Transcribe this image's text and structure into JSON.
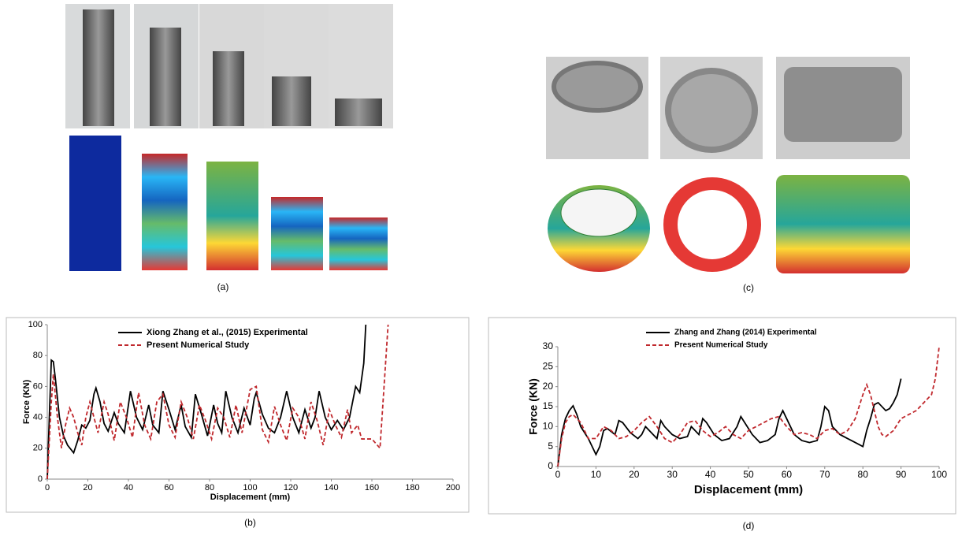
{
  "panels": {
    "a": "(a)",
    "c": "(c)"
  },
  "chart_data": [
    {
      "type": "line",
      "caption": "(b)",
      "xlabel": "Displacement (mm)",
      "ylabel": "Force (KN)",
      "xlim": [
        0,
        200
      ],
      "xticks": [
        0,
        20,
        40,
        60,
        80,
        100,
        120,
        140,
        160,
        180,
        200
      ],
      "ylim": [
        0,
        100
      ],
      "yticks": [
        0,
        20,
        40,
        60,
        80,
        100
      ],
      "grid": false,
      "legend": "top",
      "series": [
        {
          "name": "Xiong Zhang et al., (2015) Experimental",
          "color": "#000000",
          "dash": false,
          "x": [
            0,
            1,
            2,
            3,
            4,
            6,
            8,
            10,
            13,
            15,
            17,
            19,
            21,
            23,
            24,
            26,
            28,
            30,
            33,
            35,
            38,
            41,
            44,
            47,
            50,
            52,
            55,
            57,
            60,
            63,
            66,
            68,
            71,
            73,
            76,
            79,
            82,
            84,
            86,
            88,
            91,
            94,
            97,
            100,
            102,
            103,
            106,
            109,
            112,
            115,
            118,
            121,
            124,
            127,
            130,
            132,
            134,
            137,
            140,
            143,
            146,
            149,
            152,
            154,
            156,
            157
          ],
          "values": [
            0,
            40,
            77,
            76,
            65,
            40,
            28,
            22,
            17,
            25,
            35,
            33,
            38,
            55,
            59,
            50,
            36,
            31,
            43,
            36,
            30,
            57,
            40,
            32,
            48,
            35,
            30,
            57,
            45,
            32,
            48,
            34,
            27,
            55,
            42,
            28,
            48,
            36,
            30,
            57,
            40,
            30,
            46,
            35,
            52,
            56,
            42,
            33,
            30,
            40,
            57,
            40,
            30,
            45,
            33,
            40,
            57,
            40,
            32,
            38,
            32,
            40,
            60,
            56,
            75,
            100
          ]
        },
        {
          "name": "Present Numerical Study",
          "color": "#c0282d",
          "dash": true,
          "x": [
            0,
            2,
            3,
            5,
            7,
            9,
            11,
            13,
            15,
            17,
            19,
            21,
            23,
            25,
            28,
            30,
            33,
            36,
            39,
            42,
            45,
            48,
            51,
            54,
            57,
            60,
            63,
            66,
            69,
            72,
            75,
            78,
            81,
            84,
            87,
            90,
            93,
            96,
            100,
            103,
            106,
            109,
            112,
            115,
            118,
            121,
            124,
            127,
            130,
            133,
            136,
            139,
            142,
            145,
            148,
            150,
            153,
            155,
            160,
            164,
            166,
            168
          ],
          "values": [
            0,
            50,
            68,
            40,
            20,
            35,
            46,
            40,
            30,
            22,
            40,
            50,
            40,
            30,
            50,
            42,
            25,
            50,
            40,
            27,
            56,
            35,
            26,
            50,
            55,
            35,
            27,
            50,
            40,
            26,
            48,
            38,
            26,
            46,
            40,
            27,
            48,
            30,
            58,
            60,
            32,
            24,
            47,
            35,
            25,
            46,
            40,
            26,
            50,
            38,
            22,
            45,
            35,
            27,
            45,
            30,
            35,
            26,
            26,
            20,
            60,
            100
          ]
        }
      ]
    },
    {
      "type": "line",
      "caption": "(d)",
      "xlabel": "Displacement (mm)",
      "ylabel": "Force (KN)",
      "xlim": [
        0,
        100
      ],
      "xticks": [
        0,
        10,
        20,
        30,
        40,
        50,
        60,
        70,
        80,
        90,
        100
      ],
      "ylim": [
        0,
        30
      ],
      "yticks": [
        0,
        5,
        10,
        15,
        20,
        25,
        30
      ],
      "grid": false,
      "legend": "top",
      "series": [
        {
          "name": "Zhang and Zhang (2014) Experimental",
          "color": "#000000",
          "dash": false,
          "x": [
            0,
            1,
            2,
            3,
            4,
            5,
            6,
            8,
            9,
            10,
            11,
            12,
            13,
            15,
            16,
            17,
            19,
            21,
            22,
            23,
            25,
            26,
            27,
            28,
            30,
            32,
            34,
            35,
            36,
            37,
            38,
            39,
            41,
            43,
            45,
            47,
            48,
            49,
            51,
            53,
            55,
            57,
            58,
            59,
            60,
            62,
            64,
            66,
            68,
            69,
            70,
            71,
            72,
            74,
            76,
            78,
            80,
            81,
            82,
            83,
            84,
            86,
            87,
            88,
            89,
            90
          ],
          "values": [
            0,
            8,
            12,
            14,
            15.2,
            13,
            10,
            7,
            5,
            3,
            5,
            9,
            9.5,
            8,
            11.5,
            11,
            8.5,
            7,
            8,
            10,
            8,
            7,
            11.5,
            10,
            8,
            7,
            7.5,
            10,
            9,
            8,
            12,
            11,
            8,
            6.5,
            7,
            10,
            12.5,
            11,
            8,
            6,
            6.5,
            8,
            12,
            14,
            12,
            8,
            6.5,
            6,
            6.5,
            10,
            15,
            14,
            10,
            8,
            7,
            6,
            5,
            9,
            12,
            15.5,
            16,
            14,
            14.5,
            16,
            18,
            22
          ]
        },
        {
          "name": "Present Numerical Study",
          "color": "#c0282d",
          "dash": true,
          "x": [
            0,
            1,
            2,
            3,
            4,
            6,
            8,
            10,
            12,
            14,
            16,
            18,
            20,
            22,
            24,
            26,
            28,
            30,
            32,
            34,
            36,
            38,
            40,
            42,
            44,
            46,
            48,
            50,
            52,
            54,
            56,
            58,
            60,
            62,
            64,
            66,
            68,
            70,
            72,
            74,
            76,
            78,
            80,
            81,
            82,
            84,
            85,
            86,
            88,
            90,
            94,
            98,
            99,
            100
          ],
          "values": [
            0,
            7,
            11,
            12.5,
            13,
            11,
            7,
            7,
            10,
            9,
            7,
            7.5,
            9,
            11,
            12.5,
            10,
            7,
            6,
            8,
            11,
            11.5,
            9,
            7.5,
            8.5,
            10,
            8,
            7,
            9,
            10,
            11,
            12,
            12.5,
            10,
            8,
            8.5,
            8,
            7,
            9,
            9.5,
            8,
            9,
            12,
            18,
            20.5,
            18,
            10,
            8,
            7.5,
            9,
            12,
            14,
            18,
            22,
            30
          ]
        }
      ]
    }
  ]
}
